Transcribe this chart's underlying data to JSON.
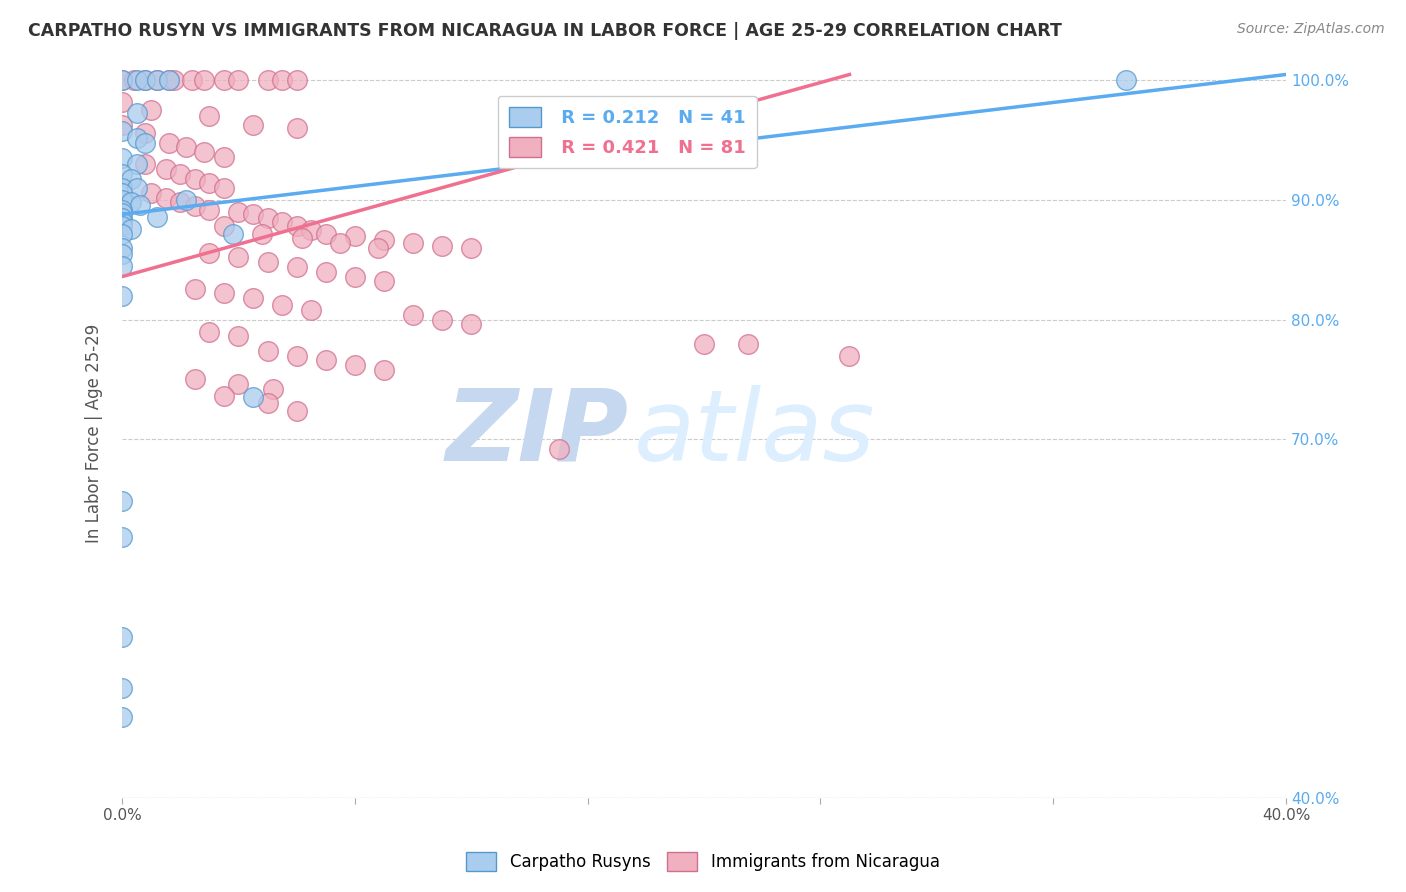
{
  "title": "CARPATHO RUSYN VS IMMIGRANTS FROM NICARAGUA IN LABOR FORCE | AGE 25-29 CORRELATION CHART",
  "source": "Source: ZipAtlas.com",
  "ylabel": "In Labor Force | Age 25-29",
  "xlim": [
    0.0,
    0.4
  ],
  "ylim": [
    0.4,
    1.01
  ],
  "ytick_values": [
    0.4,
    0.7,
    0.8,
    0.9,
    1.0
  ],
  "xtick_values": [
    0.0,
    0.08,
    0.16,
    0.24,
    0.32,
    0.4
  ],
  "blue_R": 0.212,
  "blue_N": 41,
  "pink_R": 0.421,
  "pink_N": 81,
  "legend_label_blue": "Carpatho Rusyns",
  "legend_label_pink": "Immigrants from Nicaragua",
  "blue_scatter": [
    [
      0.0,
      1.0
    ],
    [
      0.005,
      1.0
    ],
    [
      0.008,
      1.0
    ],
    [
      0.012,
      1.0
    ],
    [
      0.016,
      1.0
    ],
    [
      0.005,
      0.973
    ],
    [
      0.0,
      0.958
    ],
    [
      0.005,
      0.952
    ],
    [
      0.008,
      0.948
    ],
    [
      0.0,
      0.935
    ],
    [
      0.005,
      0.93
    ],
    [
      0.0,
      0.922
    ],
    [
      0.003,
      0.918
    ],
    [
      0.0,
      0.91
    ],
    [
      0.005,
      0.91
    ],
    [
      0.0,
      0.906
    ],
    [
      0.0,
      0.9
    ],
    [
      0.003,
      0.898
    ],
    [
      0.006,
      0.896
    ],
    [
      0.0,
      0.892
    ],
    [
      0.0,
      0.889
    ],
    [
      0.0,
      0.885
    ],
    [
      0.0,
      0.882
    ],
    [
      0.0,
      0.878
    ],
    [
      0.003,
      0.876
    ],
    [
      0.0,
      0.872
    ],
    [
      0.012,
      0.886
    ],
    [
      0.022,
      0.9
    ],
    [
      0.038,
      0.872
    ],
    [
      0.0,
      0.86
    ],
    [
      0.0,
      0.855
    ],
    [
      0.0,
      0.845
    ],
    [
      0.0,
      0.82
    ],
    [
      0.045,
      0.735
    ],
    [
      0.0,
      0.648
    ],
    [
      0.0,
      0.618
    ],
    [
      0.345,
      1.0
    ],
    [
      0.0,
      0.535
    ],
    [
      0.0,
      0.492
    ],
    [
      0.0,
      0.468
    ]
  ],
  "pink_scatter": [
    [
      0.0,
      1.0
    ],
    [
      0.004,
      1.0
    ],
    [
      0.008,
      1.0
    ],
    [
      0.012,
      1.0
    ],
    [
      0.016,
      1.0
    ],
    [
      0.018,
      1.0
    ],
    [
      0.024,
      1.0
    ],
    [
      0.028,
      1.0
    ],
    [
      0.035,
      1.0
    ],
    [
      0.04,
      1.0
    ],
    [
      0.05,
      1.0
    ],
    [
      0.055,
      1.0
    ],
    [
      0.06,
      1.0
    ],
    [
      0.0,
      0.982
    ],
    [
      0.01,
      0.975
    ],
    [
      0.03,
      0.97
    ],
    [
      0.0,
      0.963
    ],
    [
      0.008,
      0.956
    ],
    [
      0.045,
      0.963
    ],
    [
      0.06,
      0.96
    ],
    [
      0.016,
      0.948
    ],
    [
      0.022,
      0.944
    ],
    [
      0.028,
      0.94
    ],
    [
      0.035,
      0.936
    ],
    [
      0.008,
      0.93
    ],
    [
      0.015,
      0.926
    ],
    [
      0.02,
      0.922
    ],
    [
      0.025,
      0.918
    ],
    [
      0.03,
      0.914
    ],
    [
      0.035,
      0.91
    ],
    [
      0.01,
      0.906
    ],
    [
      0.015,
      0.902
    ],
    [
      0.02,
      0.898
    ],
    [
      0.025,
      0.895
    ],
    [
      0.03,
      0.892
    ],
    [
      0.04,
      0.89
    ],
    [
      0.045,
      0.888
    ],
    [
      0.05,
      0.885
    ],
    [
      0.055,
      0.882
    ],
    [
      0.06,
      0.878
    ],
    [
      0.065,
      0.875
    ],
    [
      0.07,
      0.872
    ],
    [
      0.08,
      0.87
    ],
    [
      0.09,
      0.867
    ],
    [
      0.1,
      0.864
    ],
    [
      0.11,
      0.862
    ],
    [
      0.12,
      0.86
    ],
    [
      0.035,
      0.878
    ],
    [
      0.048,
      0.872
    ],
    [
      0.062,
      0.868
    ],
    [
      0.075,
      0.864
    ],
    [
      0.088,
      0.86
    ],
    [
      0.03,
      0.856
    ],
    [
      0.04,
      0.852
    ],
    [
      0.05,
      0.848
    ],
    [
      0.06,
      0.844
    ],
    [
      0.07,
      0.84
    ],
    [
      0.08,
      0.836
    ],
    [
      0.09,
      0.832
    ],
    [
      0.025,
      0.826
    ],
    [
      0.035,
      0.822
    ],
    [
      0.045,
      0.818
    ],
    [
      0.055,
      0.812
    ],
    [
      0.065,
      0.808
    ],
    [
      0.1,
      0.804
    ],
    [
      0.11,
      0.8
    ],
    [
      0.12,
      0.796
    ],
    [
      0.03,
      0.79
    ],
    [
      0.04,
      0.786
    ],
    [
      0.05,
      0.774
    ],
    [
      0.06,
      0.77
    ],
    [
      0.07,
      0.766
    ],
    [
      0.08,
      0.762
    ],
    [
      0.09,
      0.758
    ],
    [
      0.025,
      0.75
    ],
    [
      0.04,
      0.746
    ],
    [
      0.052,
      0.742
    ],
    [
      0.035,
      0.736
    ],
    [
      0.05,
      0.73
    ],
    [
      0.06,
      0.724
    ],
    [
      0.2,
      0.78
    ],
    [
      0.215,
      0.78
    ],
    [
      0.25,
      0.77
    ],
    [
      0.15,
      0.692
    ]
  ],
  "blue_line_x": [
    0.0,
    0.4
  ],
  "blue_line_y": [
    0.888,
    1.005
  ],
  "pink_line_x": [
    0.0,
    0.25
  ],
  "pink_line_y": [
    0.836,
    1.005
  ],
  "blue_line_color": "#5aabf0",
  "pink_line_color": "#f07090",
  "blue_scatter_facecolor": "#aaccee",
  "blue_scatter_edgecolor": "#5599cc",
  "pink_scatter_facecolor": "#f0b0c0",
  "pink_scatter_edgecolor": "#d07090",
  "watermark_zip": "ZIP",
  "watermark_atlas": "atlas",
  "background_color": "#ffffff",
  "grid_color": "#cccccc",
  "title_color": "#333333",
  "source_color": "#888888",
  "axis_label_color": "#555555",
  "tick_color_right": "#5aabf0"
}
